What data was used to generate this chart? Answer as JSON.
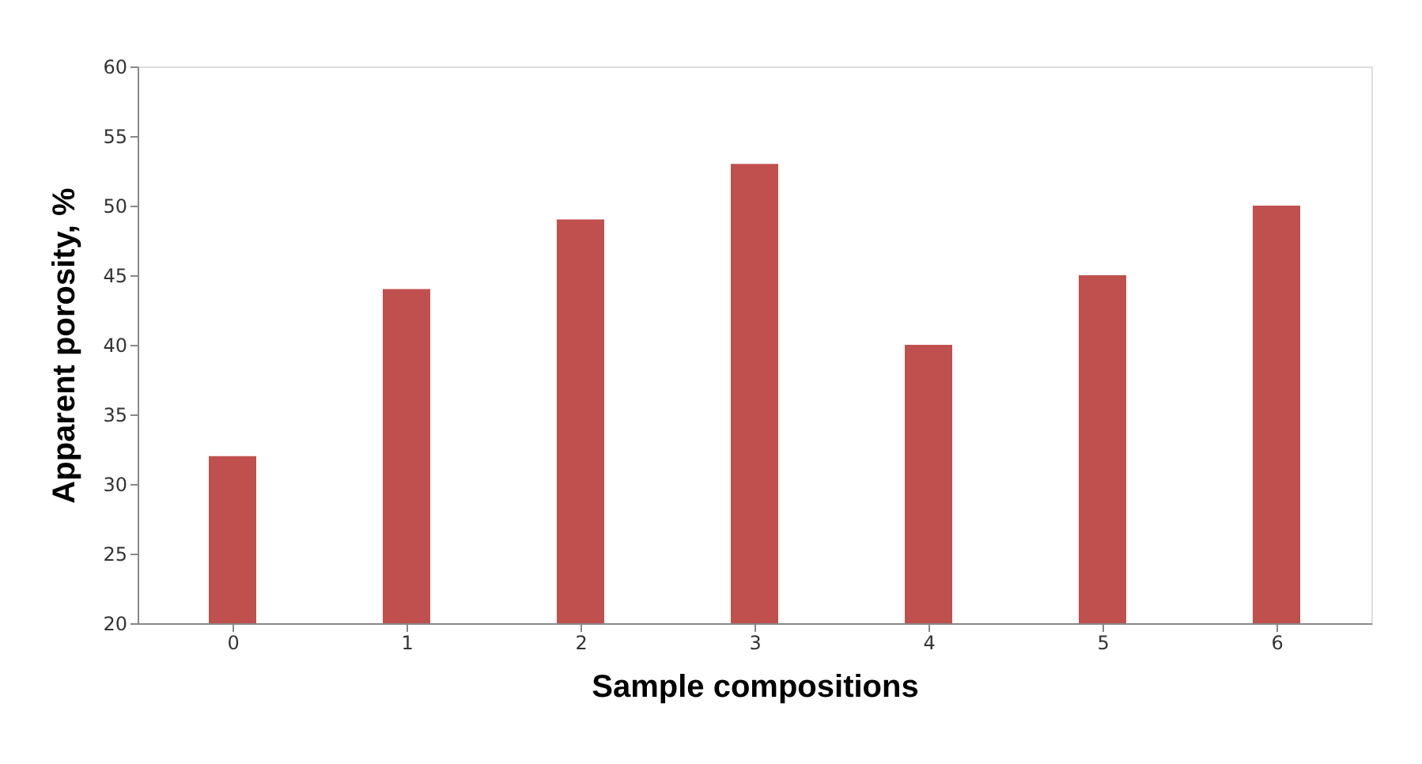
{
  "chart_data": {
    "type": "bar",
    "xlabel": "Sample compositions",
    "ylabel": "Apparent porosity, %",
    "categories": [
      "0",
      "1",
      "2",
      "3",
      "4",
      "5",
      "6"
    ],
    "values": [
      32,
      44,
      49,
      53,
      40,
      45,
      50
    ],
    "color": "#c0504d",
    "ylim": [
      20,
      60
    ],
    "yticks": [
      20,
      25,
      30,
      35,
      40,
      45,
      50,
      55,
      60
    ],
    "grid": false
  }
}
